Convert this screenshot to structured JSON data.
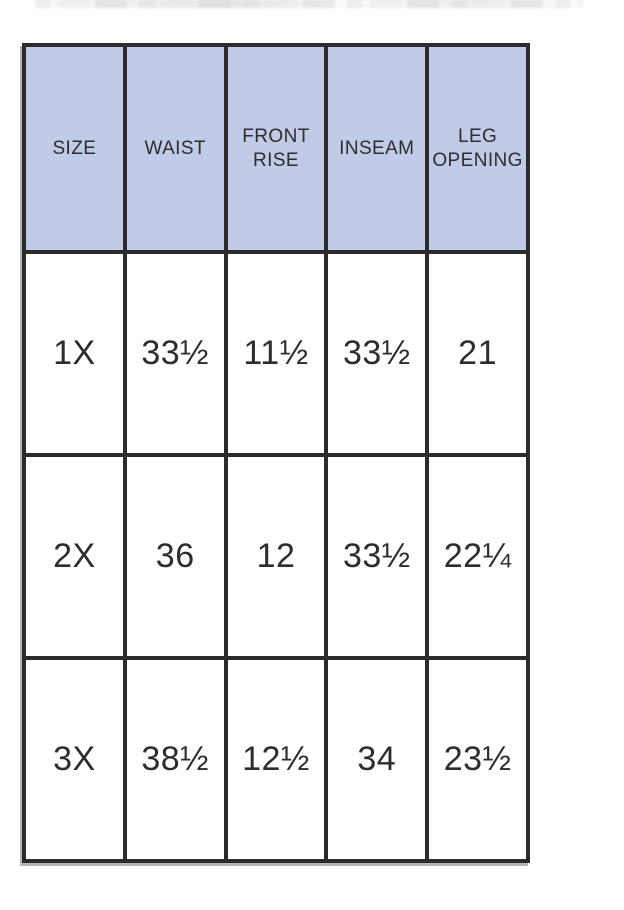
{
  "chart_data": {
    "type": "table",
    "columns": [
      "SIZE",
      "WAIST",
      "FRONT RISE",
      "INSEAM",
      "LEG OPENING"
    ],
    "rows": [
      [
        "1X",
        "33½",
        "11½",
        "33½",
        "21"
      ],
      [
        "2X",
        "36",
        "12",
        "33½",
        "22¼"
      ],
      [
        "3X",
        "38½",
        "12½",
        "34",
        "23½"
      ]
    ]
  },
  "colors": {
    "header_bg": "#c1cbe7",
    "border": "#2b2b2b",
    "text": "#2d2d2d",
    "cell_bg": "#ffffff",
    "page_bg": "#ffffff"
  }
}
